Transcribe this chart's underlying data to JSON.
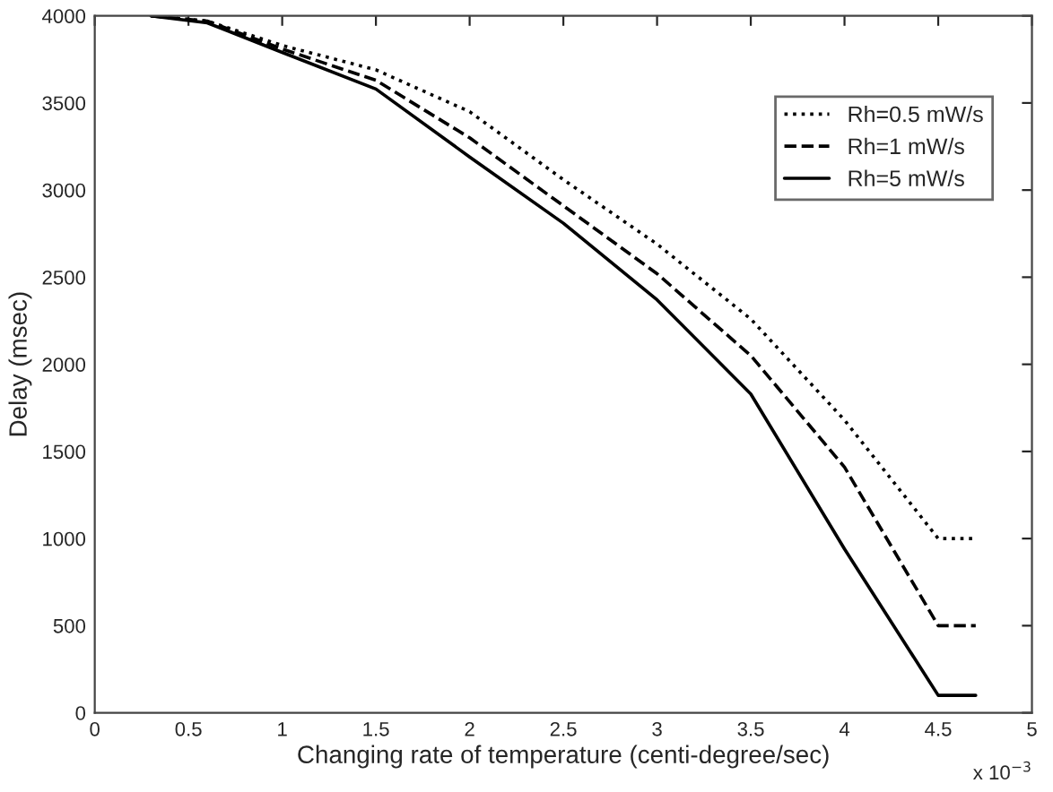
{
  "chart_data": {
    "type": "line",
    "xlabel": "Changing rate of temperature (centi-degree/sec)",
    "ylabel": "Delay (msec)",
    "annotations": [
      "x 10$^{−3}$"
    ],
    "xlim": [
      0,
      5
    ],
    "xticks": [
      0,
      0.5,
      1,
      1.5,
      2,
      2.5,
      3,
      3.5,
      4,
      4.5,
      5
    ],
    "ylim": [
      0,
      4000
    ],
    "yticks": [
      0,
      500,
      1000,
      1500,
      2000,
      2500,
      3000,
      3500,
      4000
    ],
    "grid": false,
    "legend": "top right",
    "marker": "none",
    "series": [
      {
        "name": "Rh=0.5 mW/s",
        "color": "#000000",
        "line_style": "dotted",
        "x": [
          0.3,
          0.6,
          1,
          1.5,
          2,
          2.5,
          3,
          3.5,
          4,
          4.5,
          4.7
        ],
        "values": [
          4000,
          3970,
          3830,
          3690,
          3450,
          3060,
          2690,
          2260,
          1680,
          1000,
          1000
        ]
      },
      {
        "name": "Rh=1 mW/s",
        "color": "#000000",
        "line_style": "dashed",
        "x": [
          0.3,
          0.6,
          1,
          1.5,
          2,
          2.5,
          3,
          3.5,
          4,
          4.5,
          4.7
        ],
        "values": [
          4000,
          3970,
          3810,
          3630,
          3300,
          2910,
          2520,
          2050,
          1410,
          500,
          500
        ]
      },
      {
        "name": "Rh=5 mW/s",
        "color": "#000000",
        "line_style": "solid",
        "x": [
          0.3,
          0.6,
          1,
          1.5,
          2,
          2.5,
          3,
          3.5,
          4,
          4.5,
          4.7
        ],
        "values": [
          4000,
          3960,
          3790,
          3580,
          3190,
          2810,
          2370,
          1830,
          940,
          100,
          100
        ]
      }
    ]
  }
}
